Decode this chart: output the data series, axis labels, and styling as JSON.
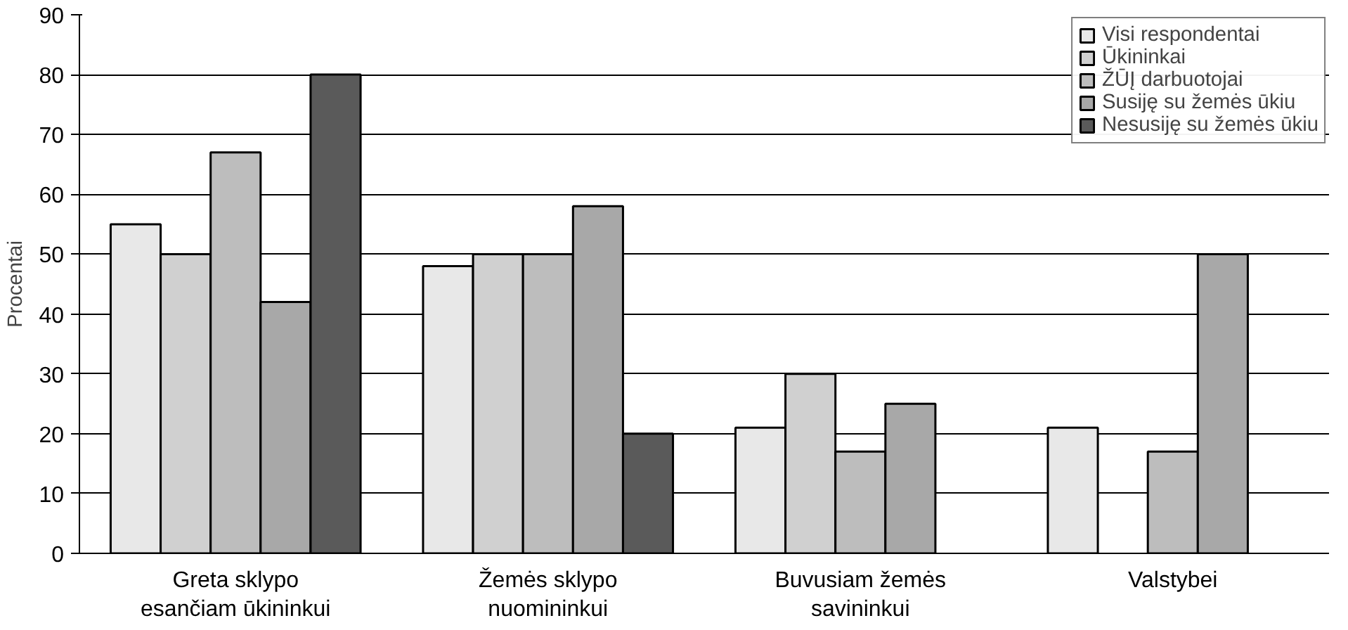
{
  "chart_data": {
    "type": "bar",
    "ylabel": "Procentai",
    "categories": [
      "Greta sklypo\nesančiam ūkininkui",
      "Žemės sklypo\nnuomininkui",
      "Buvusiam žemės\nsavininkui",
      "Valstybei"
    ],
    "series": [
      {
        "name": "Visi respondentai",
        "color": "#e8e8e8",
        "values": [
          55,
          48,
          21,
          21
        ]
      },
      {
        "name": "Ūkininkai",
        "color": "#d0d0d0",
        "values": [
          50,
          50,
          30,
          null
        ]
      },
      {
        "name": "ŽŪĮ darbuotojai",
        "color": "#bdbdbd",
        "values": [
          67,
          50,
          17,
          17
        ]
      },
      {
        "name": "Susiję su žemės ūkiu",
        "color": "#a8a8a8",
        "values": [
          42,
          58,
          25,
          50
        ]
      },
      {
        "name": "Nesusiję su žemės ūkiu",
        "color": "#5a5a5a",
        "values": [
          80,
          20,
          null,
          null
        ]
      }
    ],
    "ylim": [
      0,
      90
    ],
    "yticks": [
      0,
      10,
      20,
      30,
      40,
      50,
      60,
      70,
      80,
      90
    ],
    "grid": "y",
    "legend": "top right"
  }
}
